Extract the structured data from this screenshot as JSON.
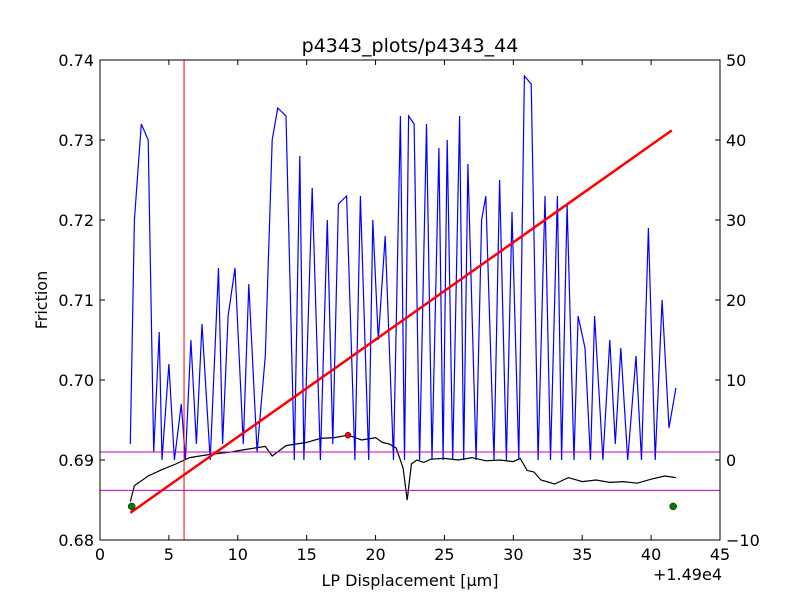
{
  "chart_data": {
    "type": "line",
    "title": "p4343_plots/p4343_44",
    "xlabel": "LP Displacement [μm]",
    "ylabel": "Friction",
    "x_offset_text": "+1.49e4",
    "xlim": [
      0,
      45
    ],
    "ylim": [
      0.68,
      0.74
    ],
    "y2lim": [
      -10,
      50
    ],
    "x_ticks": [
      "0",
      "5",
      "10",
      "15",
      "20",
      "25",
      "30",
      "35",
      "40",
      "45"
    ],
    "y_ticks": [
      "0.68",
      "0.69",
      "0.70",
      "0.71",
      "0.72",
      "0.73",
      "0.74"
    ],
    "y2_ticks": [
      "−10",
      "0",
      "10",
      "20",
      "30",
      "40",
      "50"
    ],
    "grid": false,
    "colors": {
      "friction": "#000000",
      "secondary": "#0000ff",
      "fit_line": "#ff0000",
      "vline": "#ff0000",
      "hlines": "#bf00bf",
      "endpoints": "#007f00",
      "peak": "#ff0000"
    },
    "series": [
      {
        "axis": "left",
        "x": [
          2.2,
          2.5,
          3.5,
          4.5,
          5.5,
          6.5,
          8,
          9.5,
          10.5,
          12,
          12.5,
          13.5,
          15,
          16,
          17,
          18,
          19,
          20,
          20.5,
          21,
          21.5,
          22,
          22.3,
          22.6,
          23,
          23.5,
          24,
          25,
          26,
          27,
          28,
          29,
          30,
          30.5,
          31,
          31.5,
          32,
          33,
          34,
          35,
          36,
          37,
          38,
          39,
          40,
          41,
          41.8
        ],
        "y": [
          0.6848,
          0.6868,
          0.688,
          0.6888,
          0.6895,
          0.6903,
          0.6907,
          0.691,
          0.6913,
          0.6917,
          0.6905,
          0.6918,
          0.6922,
          0.6927,
          0.6928,
          0.6931,
          0.6925,
          0.6928,
          0.6922,
          0.692,
          0.6915,
          0.689,
          0.685,
          0.6895,
          0.69,
          0.6897,
          0.6901,
          0.6902,
          0.69,
          0.6903,
          0.6899,
          0.69,
          0.6898,
          0.6902,
          0.6887,
          0.6885,
          0.6875,
          0.687,
          0.6878,
          0.6873,
          0.6875,
          0.6872,
          0.6873,
          0.6871,
          0.6876,
          0.688,
          0.6878
        ]
      },
      {
        "axis": "right",
        "x": [
          2.2,
          2.5,
          3.0,
          3.5,
          3.9,
          4.3,
          4.5,
          5.0,
          5.4,
          5.9,
          6.2,
          6.6,
          7.0,
          7.4,
          8.0,
          8.6,
          8.9,
          9.3,
          9.8,
          10.4,
          10.8,
          11.4,
          12.0,
          12.5,
          12.9,
          13.5,
          14.1,
          14.5,
          14.8,
          15.4,
          16.0,
          16.5,
          16.9,
          17.3,
          17.9,
          18.5,
          18.9,
          19.5,
          19.8,
          20.2,
          20.7,
          21.3,
          21.8,
          22.1,
          22.4,
          22.8,
          23.2,
          23.7,
          24.1,
          24.6,
          24.9,
          25.2,
          25.6,
          26.1,
          26.4,
          26.7,
          27.3,
          27.7,
          28.0,
          28.6,
          29.0,
          29.5,
          29.9,
          30.4,
          30.8,
          31.3,
          31.8,
          32.3,
          32.7,
          33.2,
          33.5,
          33.9,
          34.4,
          34.7,
          35.2,
          35.6,
          35.9,
          36.5,
          37.0,
          37.4,
          37.8,
          38.3,
          38.9,
          39.3,
          39.8,
          40.3,
          40.8,
          41.3,
          41.8
        ],
        "y": [
          2,
          30,
          42,
          40,
          1,
          16,
          0,
          12,
          0,
          7,
          0,
          15,
          2,
          17,
          0,
          24,
          2,
          18,
          24,
          2,
          22,
          1,
          13,
          40,
          44,
          43,
          0,
          38,
          0,
          34,
          0,
          30,
          2,
          32,
          33,
          0,
          33,
          0,
          30,
          15,
          28,
          0,
          43,
          0,
          43,
          42,
          0,
          42,
          0,
          39,
          0,
          40,
          0,
          43,
          0,
          37,
          0,
          30,
          33,
          0,
          35,
          0,
          31,
          0,
          48,
          47,
          0,
          33,
          0,
          33,
          0,
          32,
          0,
          18,
          14,
          0,
          18,
          0,
          15,
          2,
          14,
          0,
          13,
          0,
          29,
          0,
          20,
          4,
          9
        ]
      }
    ],
    "fit_line": {
      "x": [
        2.2,
        41.5
      ],
      "y": [
        0.6834,
        0.7312
      ]
    },
    "vline_x": 6.1,
    "hlines_y": [
      0.691,
      0.6862
    ],
    "endpoints": [
      {
        "x": 2.3,
        "y": 0.6842
      },
      {
        "x": 41.6,
        "y": 0.6842
      }
    ],
    "peak_marker": {
      "x": 18.0,
      "y": 0.6931
    }
  }
}
